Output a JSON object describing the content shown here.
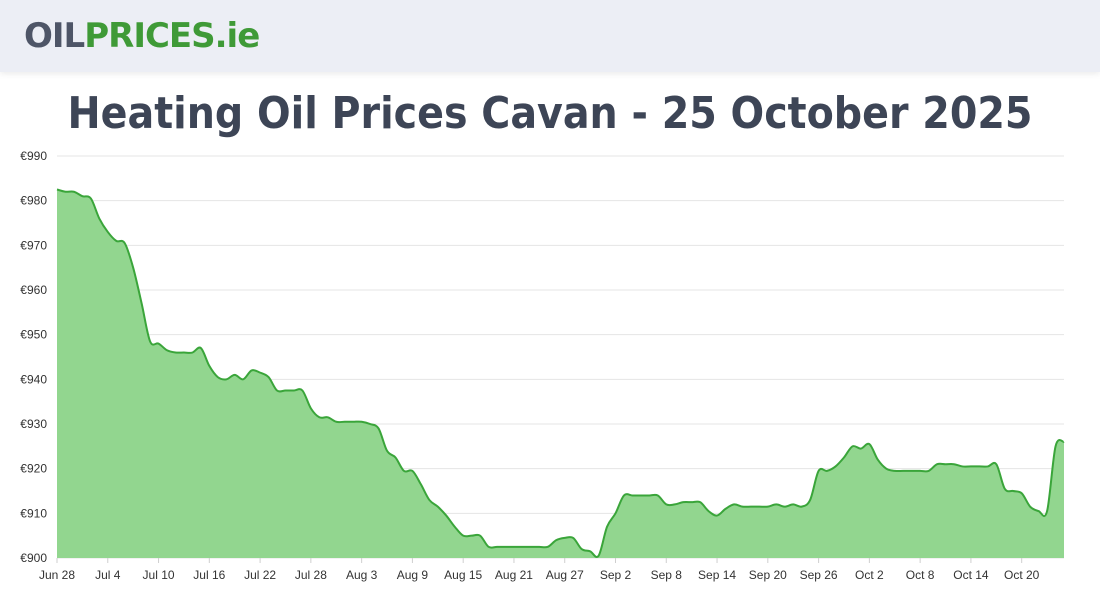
{
  "site": {
    "logo_oil": "OIL",
    "logo_prices": "PRICES",
    "logo_tld": ".ie"
  },
  "page": {
    "title": "Heating Oil Prices Cavan - 25 October 2025"
  },
  "colors": {
    "line": "#3aa53a",
    "fill": "#92d68f",
    "grid": "#e4e4e4"
  },
  "chart_data": {
    "type": "area",
    "title": "",
    "xlabel": "",
    "ylabel": "",
    "ylim": [
      900,
      990
    ],
    "y_ticks": [
      900,
      910,
      920,
      930,
      940,
      950,
      960,
      970,
      980,
      990
    ],
    "y_tick_prefix": "€",
    "grid": true,
    "legend": "none",
    "x_tick_labels": [
      "Jun 28",
      "Jul 4",
      "Jul 10",
      "Jul 16",
      "Jul 22",
      "Jul 28",
      "Aug 3",
      "Aug 9",
      "Aug 15",
      "Aug 21",
      "Aug 27",
      "Sep 2",
      "Sep 8",
      "Sep 14",
      "Sep 20",
      "Sep 26",
      "Oct 2",
      "Oct 8",
      "Oct 14",
      "Oct 20"
    ],
    "x_start": "2025-06-28",
    "x_end": "2025-10-25",
    "series": [
      {
        "name": "",
        "points": [
          [
            "2025-06-28",
            982.5
          ],
          [
            "2025-06-29",
            982.0
          ],
          [
            "2025-06-30",
            982.0
          ],
          [
            "2025-07-01",
            981.0
          ],
          [
            "2025-07-02",
            980.5
          ],
          [
            "2025-07-03",
            976.0
          ],
          [
            "2025-07-04",
            973.0
          ],
          [
            "2025-07-05",
            971.0
          ],
          [
            "2025-07-06",
            970.5
          ],
          [
            "2025-07-07",
            965.0
          ],
          [
            "2025-07-08",
            957.0
          ],
          [
            "2025-07-09",
            948.5
          ],
          [
            "2025-07-10",
            948.0
          ],
          [
            "2025-07-11",
            946.5
          ],
          [
            "2025-07-12",
            946.0
          ],
          [
            "2025-07-13",
            946.0
          ],
          [
            "2025-07-14",
            946.0
          ],
          [
            "2025-07-15",
            947.0
          ],
          [
            "2025-07-16",
            943.0
          ],
          [
            "2025-07-17",
            940.5
          ],
          [
            "2025-07-18",
            940.0
          ],
          [
            "2025-07-19",
            941.0
          ],
          [
            "2025-07-20",
            940.0
          ],
          [
            "2025-07-21",
            942.0
          ],
          [
            "2025-07-22",
            941.5
          ],
          [
            "2025-07-23",
            940.5
          ],
          [
            "2025-07-24",
            937.5
          ],
          [
            "2025-07-25",
            937.5
          ],
          [
            "2025-07-26",
            937.5
          ],
          [
            "2025-07-27",
            937.5
          ],
          [
            "2025-07-28",
            933.5
          ],
          [
            "2025-07-29",
            931.5
          ],
          [
            "2025-07-30",
            931.5
          ],
          [
            "2025-07-31",
            930.5
          ],
          [
            "2025-08-01",
            930.5
          ],
          [
            "2025-08-02",
            930.5
          ],
          [
            "2025-08-03",
            930.5
          ],
          [
            "2025-08-04",
            930.0
          ],
          [
            "2025-08-05",
            929.0
          ],
          [
            "2025-08-06",
            924.0
          ],
          [
            "2025-08-07",
            922.5
          ],
          [
            "2025-08-08",
            919.5
          ],
          [
            "2025-08-09",
            919.5
          ],
          [
            "2025-08-10",
            916.5
          ],
          [
            "2025-08-11",
            913.0
          ],
          [
            "2025-08-12",
            911.5
          ],
          [
            "2025-08-13",
            909.5
          ],
          [
            "2025-08-14",
            907.0
          ],
          [
            "2025-08-15",
            905.0
          ],
          [
            "2025-08-16",
            905.0
          ],
          [
            "2025-08-17",
            905.0
          ],
          [
            "2025-08-18",
            902.5
          ],
          [
            "2025-08-19",
            902.5
          ],
          [
            "2025-08-20",
            902.5
          ],
          [
            "2025-08-21",
            902.5
          ],
          [
            "2025-08-22",
            902.5
          ],
          [
            "2025-08-23",
            902.5
          ],
          [
            "2025-08-24",
            902.5
          ],
          [
            "2025-08-25",
            902.5
          ],
          [
            "2025-08-26",
            904.0
          ],
          [
            "2025-08-27",
            904.5
          ],
          [
            "2025-08-28",
            904.5
          ],
          [
            "2025-08-29",
            902.0
          ],
          [
            "2025-08-30",
            901.5
          ],
          [
            "2025-08-31",
            900.5
          ],
          [
            "2025-09-01",
            907.0
          ],
          [
            "2025-09-02",
            910.0
          ],
          [
            "2025-09-03",
            914.0
          ],
          [
            "2025-09-04",
            914.0
          ],
          [
            "2025-09-05",
            914.0
          ],
          [
            "2025-09-06",
            914.0
          ],
          [
            "2025-09-07",
            914.0
          ],
          [
            "2025-09-08",
            912.0
          ],
          [
            "2025-09-09",
            912.0
          ],
          [
            "2025-09-10",
            912.5
          ],
          [
            "2025-09-11",
            912.5
          ],
          [
            "2025-09-12",
            912.5
          ],
          [
            "2025-09-13",
            910.5
          ],
          [
            "2025-09-14",
            909.5
          ],
          [
            "2025-09-15",
            911.0
          ],
          [
            "2025-09-16",
            912.0
          ],
          [
            "2025-09-17",
            911.5
          ],
          [
            "2025-09-18",
            911.5
          ],
          [
            "2025-09-19",
            911.5
          ],
          [
            "2025-09-20",
            911.5
          ],
          [
            "2025-09-21",
            912.0
          ],
          [
            "2025-09-22",
            911.5
          ],
          [
            "2025-09-23",
            912.0
          ],
          [
            "2025-09-24",
            911.5
          ],
          [
            "2025-09-25",
            913.0
          ],
          [
            "2025-09-26",
            919.5
          ],
          [
            "2025-09-27",
            919.5
          ],
          [
            "2025-09-28",
            920.5
          ],
          [
            "2025-09-29",
            922.5
          ],
          [
            "2025-09-30",
            925.0
          ],
          [
            "2025-10-01",
            924.5
          ],
          [
            "2025-10-02",
            925.5
          ],
          [
            "2025-10-03",
            922.0
          ],
          [
            "2025-10-04",
            920.0
          ],
          [
            "2025-10-05",
            919.5
          ],
          [
            "2025-10-06",
            919.5
          ],
          [
            "2025-10-07",
            919.5
          ],
          [
            "2025-10-08",
            919.5
          ],
          [
            "2025-10-09",
            919.5
          ],
          [
            "2025-10-10",
            921.0
          ],
          [
            "2025-10-11",
            921.0
          ],
          [
            "2025-10-12",
            921.0
          ],
          [
            "2025-10-13",
            920.5
          ],
          [
            "2025-10-14",
            920.5
          ],
          [
            "2025-10-15",
            920.5
          ],
          [
            "2025-10-16",
            920.5
          ],
          [
            "2025-10-17",
            921.0
          ],
          [
            "2025-10-18",
            915.5
          ],
          [
            "2025-10-19",
            915.0
          ],
          [
            "2025-10-20",
            914.5
          ],
          [
            "2025-10-21",
            911.5
          ],
          [
            "2025-10-22",
            910.5
          ],
          [
            "2025-10-23",
            910.5
          ],
          [
            "2025-10-24",
            925.0
          ],
          [
            "2025-10-25",
            926.0
          ]
        ]
      }
    ]
  }
}
